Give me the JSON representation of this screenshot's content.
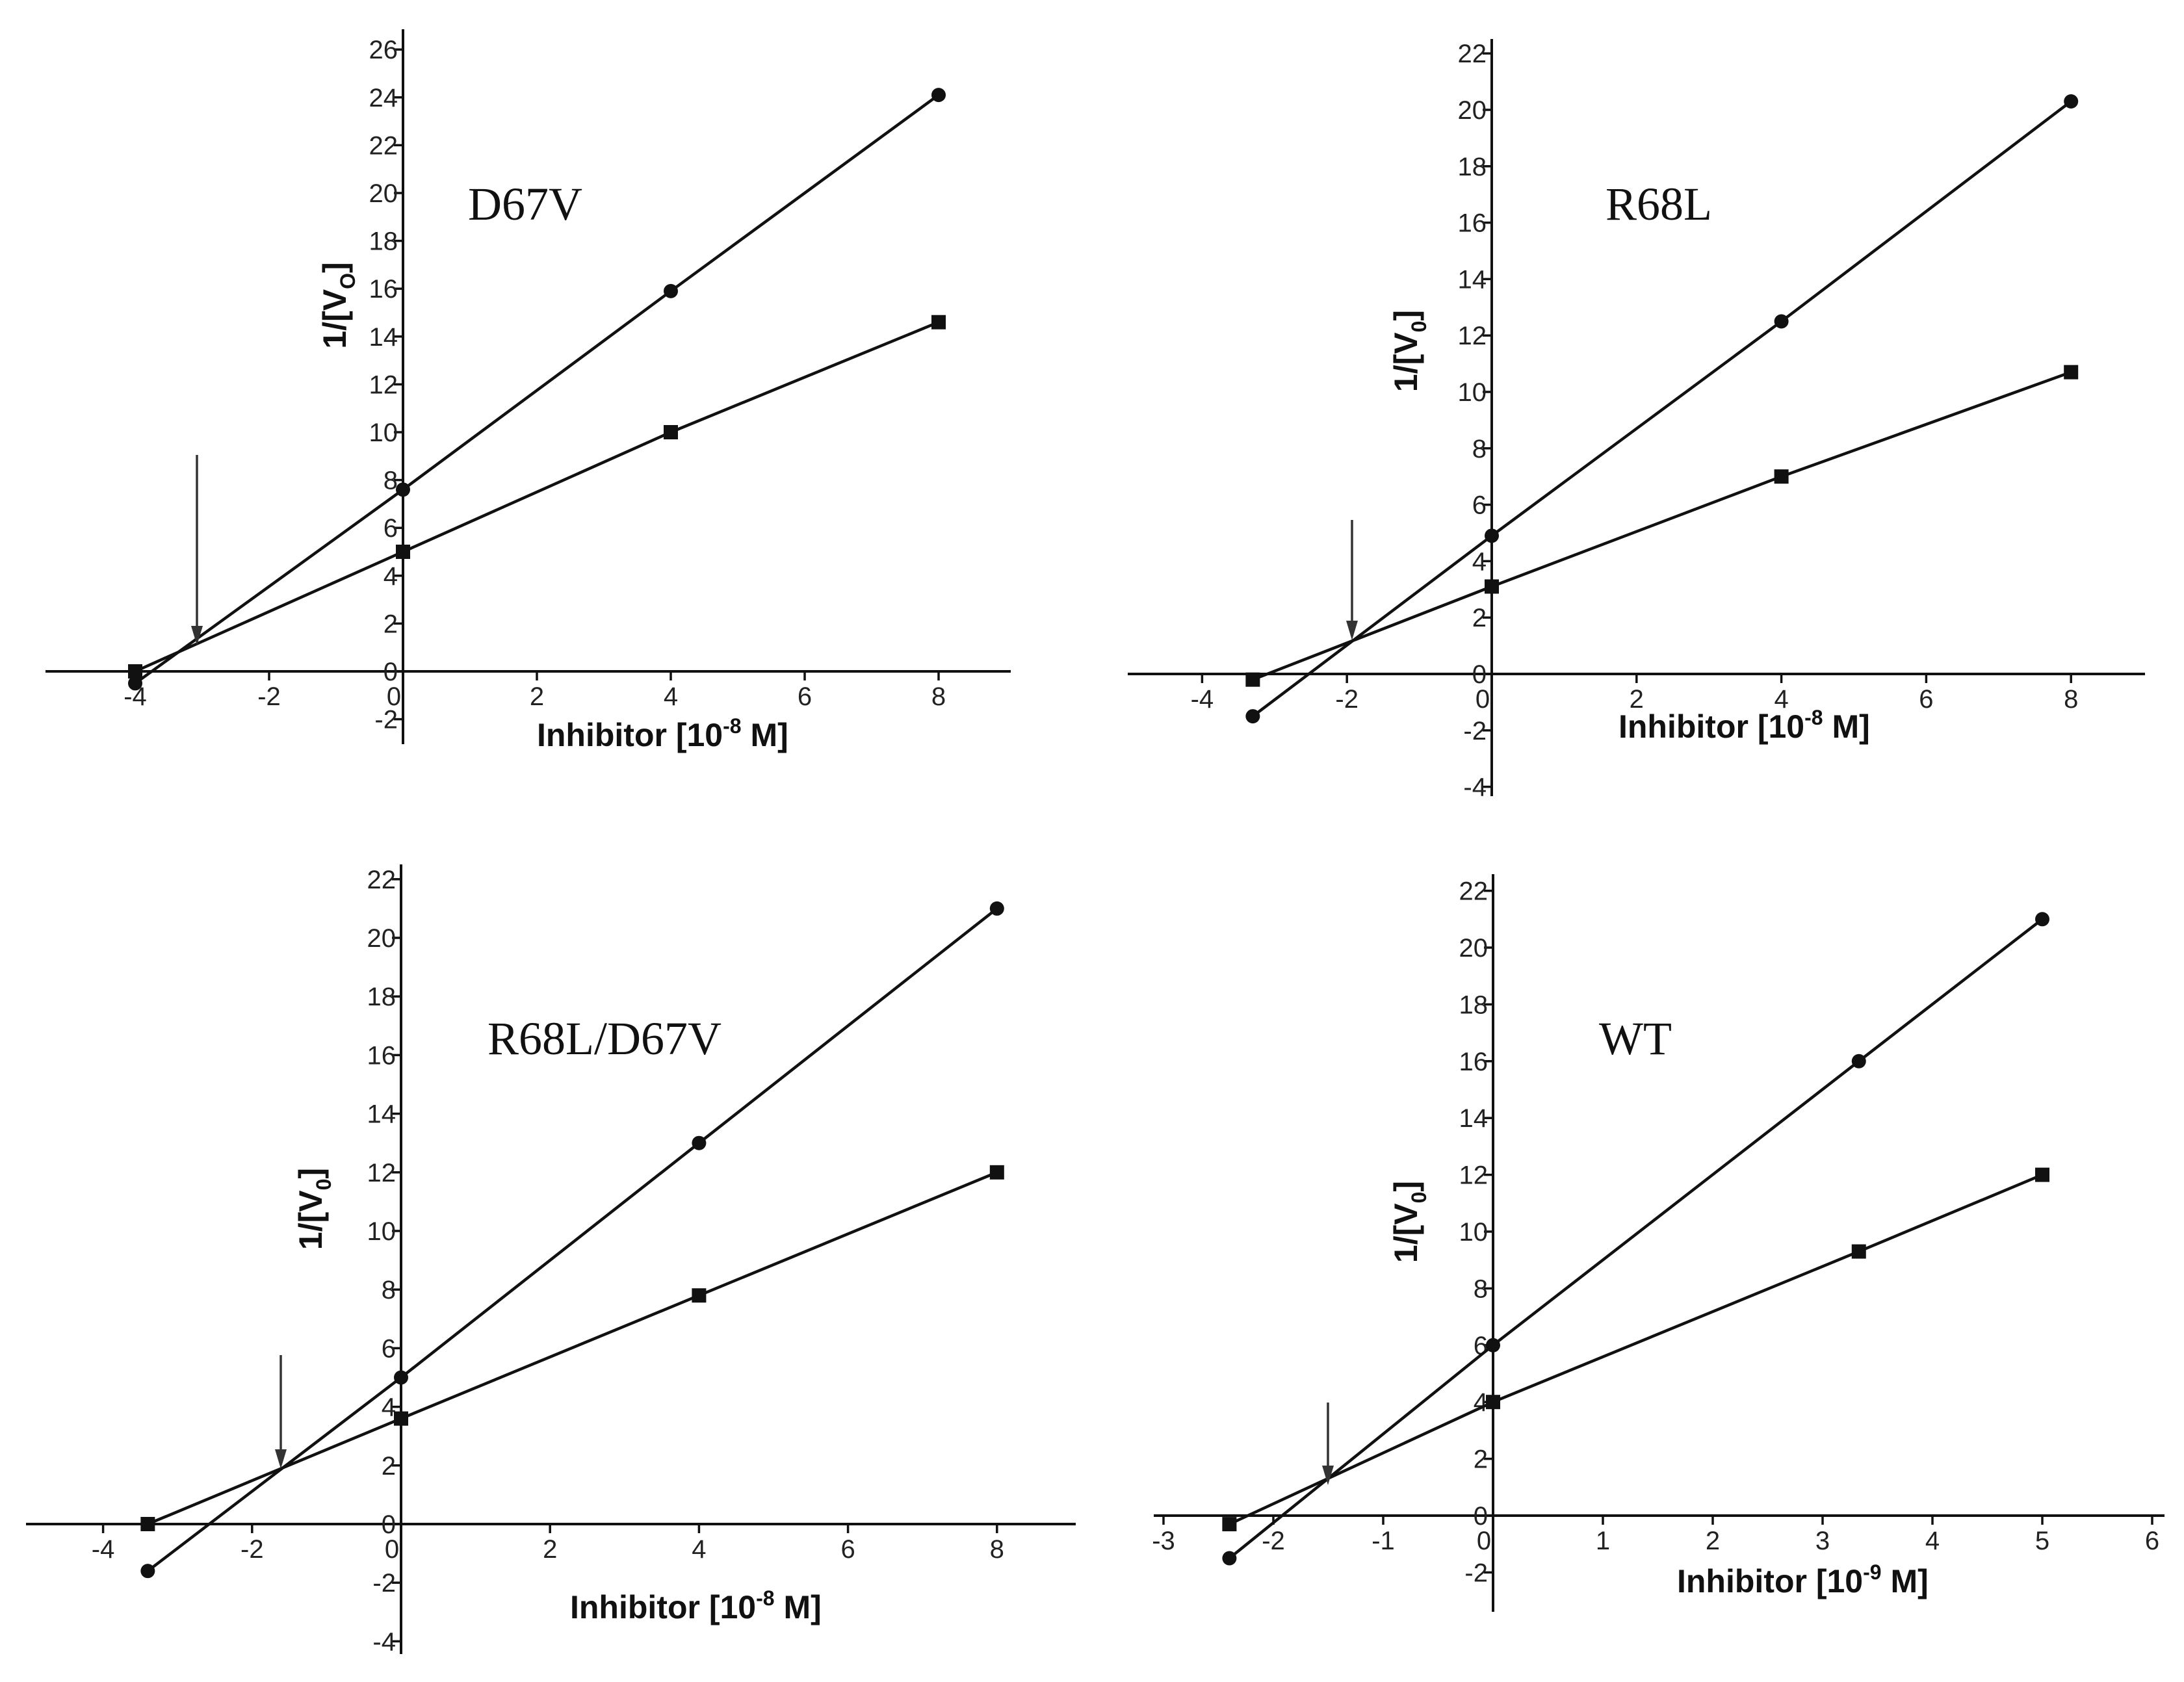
{
  "chart_data": [
    {
      "type": "scatter",
      "title": "D67V",
      "xlabel": "Inhibitor [10",
      "xlabel_exponent": "-8",
      "xlabel_unit": " M]",
      "ylabel": "1/[V",
      "ylabel_sub": "O",
      "ylabel_end": "]",
      "xticks": [
        "-4",
        "-2",
        "0",
        "2",
        "4",
        "6",
        "8"
      ],
      "yticks": [
        "-2",
        "0",
        "2",
        "4",
        "6",
        "8",
        "10",
        "12",
        "14",
        "16",
        "18",
        "20",
        "22",
        "24",
        "26"
      ],
      "xlim": [
        -4.2,
        9
      ],
      "ylim": [
        -3.2,
        26
      ],
      "grid": false,
      "series": [
        {
          "marker": "circle",
          "x": [
            -4,
            0,
            4,
            8
          ],
          "y": [
            -0.5,
            7.6,
            15.9,
            24.1
          ]
        },
        {
          "marker": "square",
          "x": [
            -4,
            0,
            4,
            8
          ],
          "y": [
            0,
            5.0,
            10.0,
            14.6
          ]
        }
      ],
      "intersection_arrow": {
        "x": -3.1,
        "y": 1.1
      }
    },
    {
      "type": "scatter",
      "title": "R68L",
      "xlabel": "Inhibitor [10",
      "xlabel_exponent": "-8",
      "xlabel_unit": " M]",
      "ylabel": "1/[V",
      "ylabel_sub": "0",
      "ylabel_end": "]",
      "xticks": [
        "-4",
        "-2",
        "0",
        "2",
        "4",
        "6",
        "8"
      ],
      "yticks": [
        "-4",
        "-2",
        "0",
        "2",
        "4",
        "6",
        "8",
        "10",
        "12",
        "14",
        "16",
        "18",
        "20",
        "22"
      ],
      "xlim": [
        -5,
        9
      ],
      "ylim": [
        -4.5,
        22
      ],
      "grid": false,
      "series": [
        {
          "marker": "circle",
          "x": [
            -3.3,
            0,
            4,
            8
          ],
          "y": [
            -1.5,
            4.9,
            12.5,
            20.3
          ]
        },
        {
          "marker": "square",
          "x": [
            -3.3,
            0,
            4,
            8
          ],
          "y": [
            -0.2,
            3.1,
            7.0,
            10.7
          ]
        }
      ],
      "intersection_arrow": {
        "x": -1.9,
        "y": 1.2
      }
    },
    {
      "type": "scatter",
      "title": "R68L/D67V",
      "xlabel": "Inhibitor [10",
      "xlabel_exponent": "-8",
      "xlabel_unit": " M]",
      "ylabel": "1/[V",
      "ylabel_sub": "0",
      "ylabel_end": "]",
      "xticks": [
        "-4",
        "-2",
        "0",
        "2",
        "4",
        "6",
        "8"
      ],
      "yticks": [
        "-4",
        "-2",
        "0",
        "2",
        "4",
        "6",
        "8",
        "10",
        "12",
        "14",
        "16",
        "18",
        "20",
        "22"
      ],
      "xlim": [
        -5.4,
        9.4
      ],
      "ylim": [
        -4.5,
        22.5
      ],
      "grid": false,
      "series": [
        {
          "marker": "circle",
          "x": [
            -3.4,
            0,
            4,
            8
          ],
          "y": [
            -1.6,
            5.0,
            13.0,
            21.0
          ]
        },
        {
          "marker": "square",
          "x": [
            -3.4,
            0,
            4,
            8
          ],
          "y": [
            0,
            3.6,
            7.8,
            12.0
          ]
        }
      ],
      "intersection_arrow": {
        "x": -1.6,
        "y": 1.9
      }
    },
    {
      "type": "scatter",
      "title": "WT",
      "xlabel": "Inhibitor [10",
      "xlabel_exponent": "-9",
      "xlabel_unit": " M]",
      "ylabel": "1/[V",
      "ylabel_sub": "0",
      "ylabel_end": "]",
      "xticks": [
        "-3",
        "-2",
        "-1",
        "0",
        "1",
        "2",
        "3",
        "4",
        "5",
        "6"
      ],
      "yticks": [
        "-2",
        "0",
        "2",
        "4",
        "6",
        "8",
        "10",
        "12",
        "14",
        "16",
        "18",
        "20",
        "22"
      ],
      "xlim": [
        -3.1,
        6
      ],
      "ylim": [
        -3.2,
        22.6
      ],
      "grid": false,
      "series": [
        {
          "marker": "circle",
          "x": [
            -2.4,
            0,
            3.33,
            5
          ],
          "y": [
            -1.5,
            6.0,
            16.0,
            21.0
          ]
        },
        {
          "marker": "square",
          "x": [
            -2.4,
            0,
            3.33,
            5
          ],
          "y": [
            -0.3,
            4.0,
            9.3,
            12.0
          ]
        }
      ],
      "intersection_arrow": {
        "x": -1.5,
        "y": 1.4
      }
    }
  ]
}
